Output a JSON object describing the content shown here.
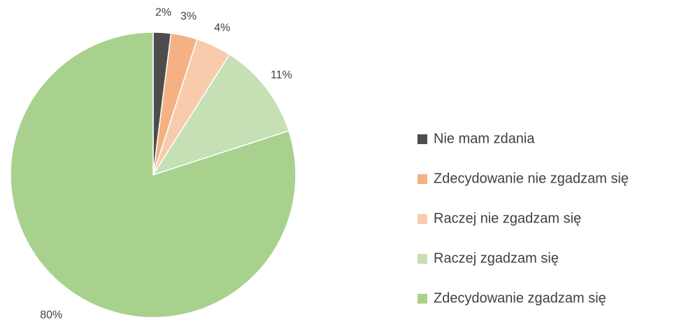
{
  "chart_data": {
    "type": "pie",
    "categories": [
      "Nie mam zdania",
      "Zdecydowanie nie zgadzam się",
      "Raczej nie zgadzam się",
      "Raczej zgadzam się",
      "Zdecydowanie zgadzam się"
    ],
    "values": [
      2,
      3,
      4,
      11,
      80
    ],
    "value_labels": [
      "2%",
      "3%",
      "4%",
      "11%",
      "80%"
    ],
    "colors": [
      "#4d4d4d",
      "#f4b183",
      "#f8cbad",
      "#c5e0b4",
      "#a9d18e"
    ],
    "legend": "right"
  }
}
